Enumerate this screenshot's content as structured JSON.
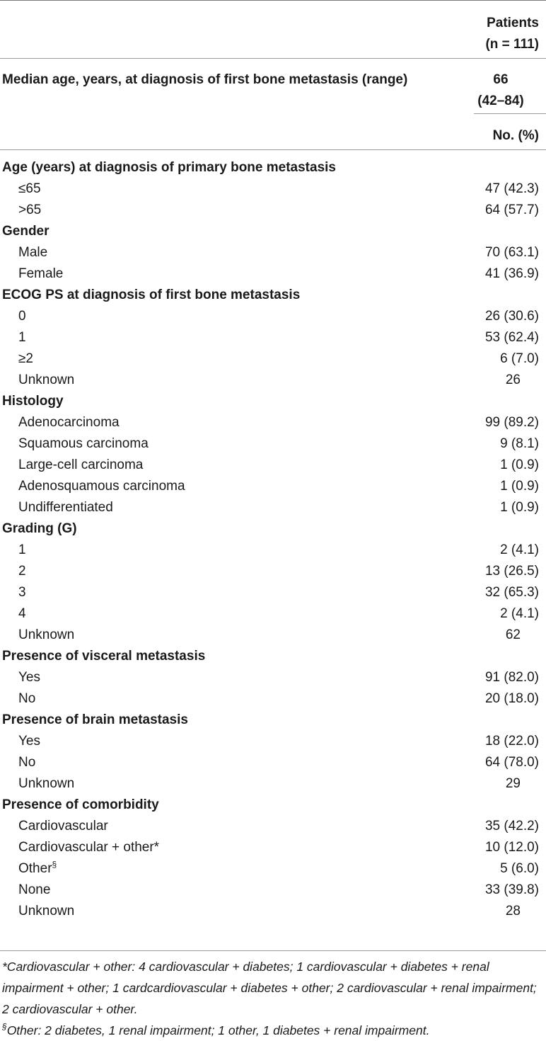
{
  "header": {
    "patients_line1": "Patients",
    "patients_line2": "(n = 111)"
  },
  "median": {
    "label": "Median age, years, at diagnosis of first bone metastasis (range)",
    "value_line1": "66",
    "value_line2": "(42–84)"
  },
  "no_pct_label": "No. (%)",
  "rows": [
    {
      "type": "section",
      "label": "Age (years) at diagnosis of primary bone metastasis",
      "value": ""
    },
    {
      "type": "sub",
      "label": "≤65",
      "value": "47 (42.3)"
    },
    {
      "type": "sub",
      "label": ">65",
      "value": "64 (57.7)"
    },
    {
      "type": "section",
      "label": "Gender",
      "value": ""
    },
    {
      "type": "sub",
      "label": "Male",
      "value": "70 (63.1)"
    },
    {
      "type": "sub",
      "label": "Female",
      "value": "41 (36.9)"
    },
    {
      "type": "section",
      "label": "ECOG PS at diagnosis of first bone metastasis",
      "value": ""
    },
    {
      "type": "sub",
      "label": "0",
      "value": "26 (30.6)"
    },
    {
      "type": "sub",
      "label": "1",
      "value": "53 (62.4)"
    },
    {
      "type": "sub",
      "label": "≥2",
      "value": "6 (7.0)"
    },
    {
      "type": "sub",
      "label": "Unknown",
      "value": "26",
      "center": true
    },
    {
      "type": "section",
      "label": "Histology",
      "value": ""
    },
    {
      "type": "sub",
      "label": "Adenocarcinoma",
      "value": "99 (89.2)"
    },
    {
      "type": "sub",
      "label": "Squamous carcinoma",
      "value": "9 (8.1)"
    },
    {
      "type": "sub",
      "label": "Large-cell carcinoma",
      "value": "1 (0.9)"
    },
    {
      "type": "sub",
      "label": "Adenosquamous carcinoma",
      "value": "1 (0.9)"
    },
    {
      "type": "sub",
      "label": "Undifferentiated",
      "value": "1 (0.9)"
    },
    {
      "type": "section",
      "label": "Grading (G)",
      "value": ""
    },
    {
      "type": "sub",
      "label": "1",
      "value": "2 (4.1)"
    },
    {
      "type": "sub",
      "label": "2",
      "value": "13 (26.5)"
    },
    {
      "type": "sub",
      "label": "3",
      "value": "32 (65.3)"
    },
    {
      "type": "sub",
      "label": "4",
      "value": "2 (4.1)"
    },
    {
      "type": "sub",
      "label": "Unknown",
      "value": "62",
      "center": true
    },
    {
      "type": "section",
      "label": "Presence of visceral metastasis",
      "value": ""
    },
    {
      "type": "sub",
      "label": "Yes",
      "value": "91 (82.0)"
    },
    {
      "type": "sub",
      "label": "No",
      "value": "20 (18.0)"
    },
    {
      "type": "section",
      "label": "Presence of brain metastasis",
      "value": ""
    },
    {
      "type": "sub",
      "label": "Yes",
      "value": "18 (22.0)"
    },
    {
      "type": "sub",
      "label": "No",
      "value": "64 (78.0)"
    },
    {
      "type": "sub",
      "label": "Unknown",
      "value": "29",
      "center": true
    },
    {
      "type": "section",
      "label": "Presence of comorbidity",
      "value": ""
    },
    {
      "type": "sub",
      "label": "Cardiovascular",
      "value": "35 (42.2)"
    },
    {
      "type": "sub",
      "label": "Cardiovascular + other*",
      "value": "10 (12.0)"
    },
    {
      "type": "sub",
      "label": "Other",
      "sup": "§",
      "value": "5 (6.0)"
    },
    {
      "type": "sub",
      "label": "None",
      "value": "33 (39.8)"
    },
    {
      "type": "sub",
      "label": "Unknown",
      "value": "28",
      "center": true
    }
  ],
  "footnotes": {
    "star": "*Cardiovascular + other: 4 cardiovascular + diabetes; 1 cardiovascular + diabetes + renal impairment + other; 1 cardcardiovascular + diabetes + other; 2 cardiovascular + renal impairment; 2 cardiovascular + other.",
    "section_mark": "§",
    "section_text": "Other: 2 diabetes, 1 renal impairment; 1 other, 1 diabetes + renal impairment."
  }
}
